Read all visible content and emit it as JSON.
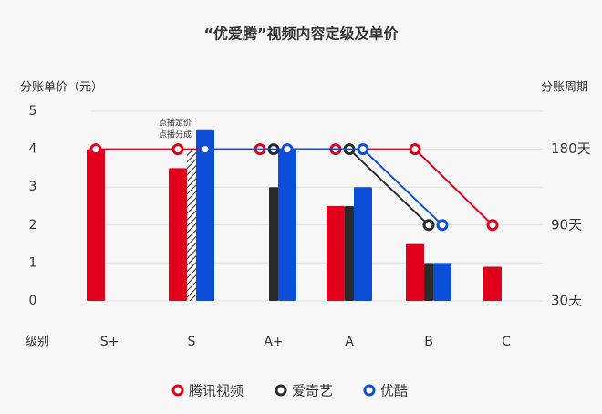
{
  "chart_data": {
    "type": "bar-line",
    "title": "“优爱腾”视频内容定级及单价",
    "y_label": "分账单价（元）",
    "y2_label": "分账周期",
    "x_label": "级别",
    "categories": [
      "S+",
      "S",
      "A+",
      "A",
      "B",
      "C"
    ],
    "ylim": [
      0,
      5
    ],
    "yticks": [
      0,
      1,
      2,
      3,
      4,
      5
    ],
    "y2lim": [
      30,
      180
    ],
    "y2ticks": [
      {
        "value": 30,
        "label": "30天"
      },
      {
        "value": 90,
        "label": "90天"
      },
      {
        "value": 180,
        "label": "180天"
      }
    ],
    "grid": true,
    "series": [
      {
        "name": "腾讯视频",
        "color": "#e0001b",
        "values": [
          4,
          3.5,
          null,
          2.5,
          1.5,
          0.9
        ],
        "period": [
          180,
          180,
          180,
          180,
          180,
          90
        ]
      },
      {
        "name": "爱奇艺",
        "color": "#2b2b2b",
        "values": [
          null,
          null,
          3,
          2.5,
          1,
          null
        ],
        "period": [
          null,
          null,
          180,
          180,
          90,
          null
        ]
      },
      {
        "name": "优酷",
        "color": "#0a4fd6",
        "values": [
          null,
          4.5,
          4,
          3,
          1,
          null
        ],
        "period": [
          null,
          180,
          180,
          180,
          90,
          null
        ]
      }
    ],
    "hatched": {
      "color": "#222222",
      "values": [
        null,
        4,
        null,
        null,
        null,
        null
      ]
    },
    "annotation": [
      "点播定价",
      "点播分成"
    ]
  }
}
